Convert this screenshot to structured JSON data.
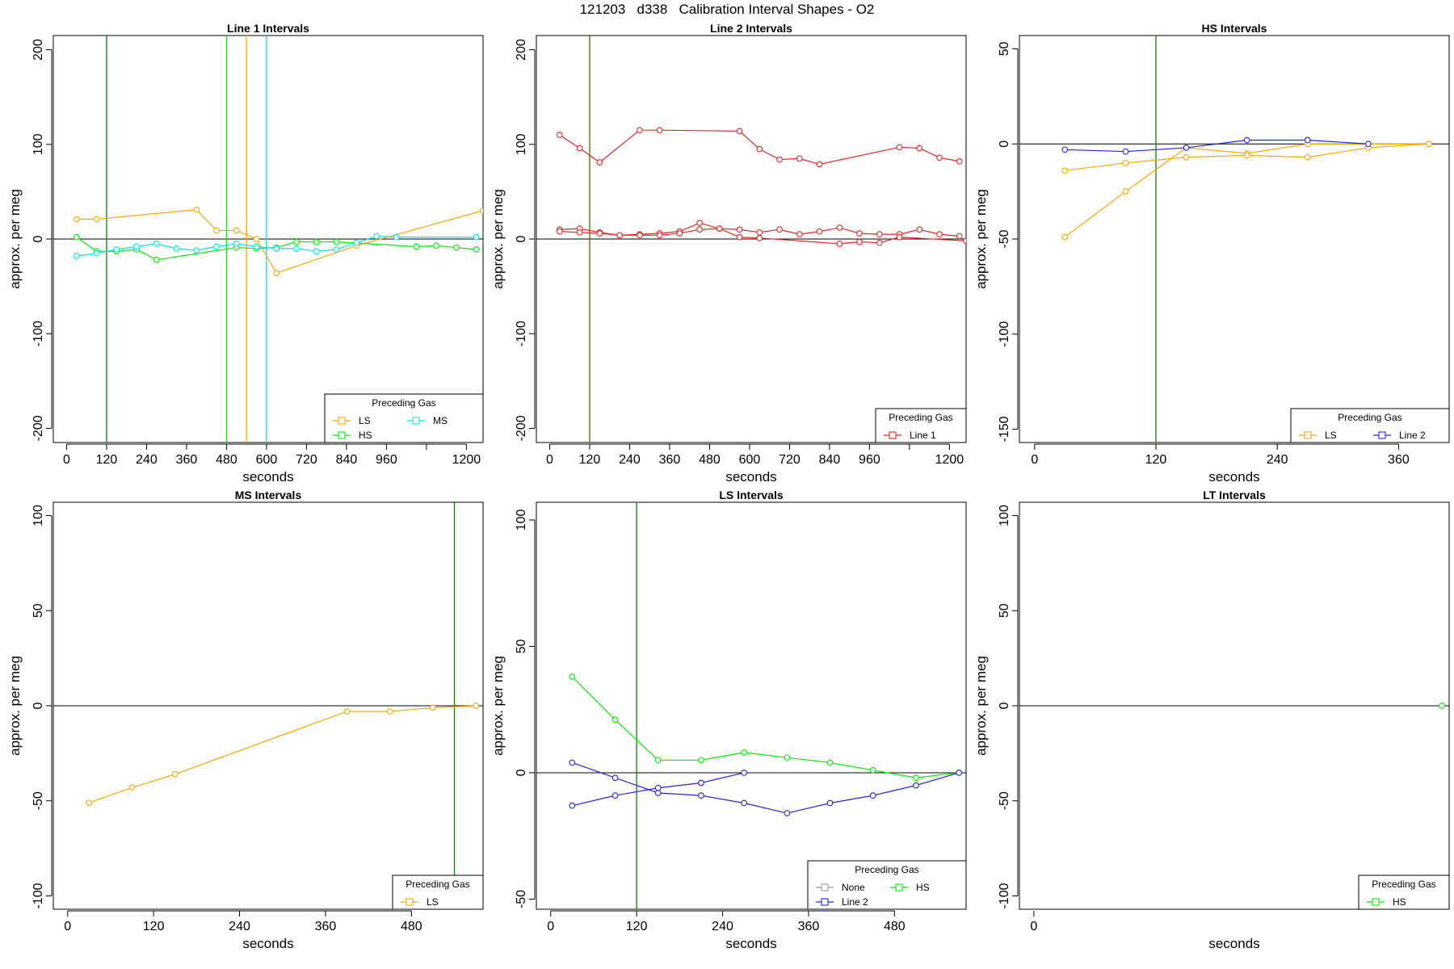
{
  "figure": {
    "title": "121203   d338   Calibration Interval Shapes - O2"
  },
  "colors": {
    "LS": "#ffa500",
    "HS": "#00ee00",
    "MS": "#00e5ee",
    "Line 1": "#ee2222",
    "Line 2": "#2222ee",
    "None": "#999999",
    "zero": "#000000"
  },
  "chart_data": [
    {
      "type": "line",
      "title": "Line 1 Intervals",
      "xlabel": "seconds",
      "ylabel": "approx. per meg",
      "xlim": [
        -40,
        1250
      ],
      "ylim": [
        -215,
        215
      ],
      "xticks": [
        0,
        120,
        240,
        360,
        480,
        600,
        720,
        840,
        960,
        1200
      ],
      "xtick_minor": [
        1080
      ],
      "yticks": [
        -200,
        -100,
        0,
        100,
        200
      ],
      "legend": {
        "title": "Preceding Gas",
        "position": "bottom-right",
        "items": [
          [
            "LS",
            "MS"
          ],
          [
            "HS"
          ]
        ]
      },
      "vlines": [
        {
          "x": 120,
          "color": "#008800"
        },
        {
          "x": 480,
          "color": "#00ee00"
        },
        {
          "x": 540,
          "color": "#ffa500"
        },
        {
          "x": 600,
          "color": "#00e5ee"
        }
      ],
      "series": [
        {
          "name": "LS",
          "color": "#ffa500",
          "points": [
            [
              30,
              21
            ],
            [
              90,
              21
            ],
            [
              390,
              31
            ],
            [
              450,
              9
            ],
            [
              510,
              9
            ],
            [
              570,
              0
            ],
            [
              630,
              -36
            ],
            [
              870,
              -7
            ],
            [
              1250,
              30
            ]
          ]
        },
        {
          "name": "HS",
          "color": "#00ee00",
          "points": [
            [
              30,
              2
            ],
            [
              90,
              -13
            ],
            [
              150,
              -13
            ],
            [
              210,
              -11
            ],
            [
              270,
              -22
            ],
            [
              510,
              -9
            ],
            [
              570,
              -10
            ],
            [
              630,
              -9
            ],
            [
              690,
              -3
            ],
            [
              750,
              -3
            ],
            [
              810,
              -3
            ],
            [
              1050,
              -8
            ],
            [
              1110,
              -7
            ],
            [
              1170,
              -9
            ],
            [
              1230,
              -11
            ]
          ]
        },
        {
          "name": "MS",
          "color": "#00e5ee",
          "points": [
            [
              30,
              -18
            ],
            [
              90,
              -15
            ],
            [
              150,
              -11
            ],
            [
              210,
              -8
            ],
            [
              270,
              -5
            ],
            [
              330,
              -10
            ],
            [
              390,
              -12
            ],
            [
              450,
              -8
            ],
            [
              510,
              -5
            ],
            [
              570,
              -8
            ],
            [
              630,
              -10
            ],
            [
              690,
              -10
            ],
            [
              750,
              -13
            ],
            [
              810,
              -11
            ],
            [
              870,
              -4
            ],
            [
              930,
              3
            ],
            [
              990,
              2
            ],
            [
              1230,
              2
            ]
          ]
        }
      ]
    },
    {
      "type": "line",
      "title": "Line 2 Intervals",
      "xlabel": "seconds",
      "ylabel": "approx. per meg",
      "xlim": [
        -40,
        1250
      ],
      "ylim": [
        -215,
        215
      ],
      "xticks": [
        0,
        120,
        240,
        360,
        480,
        600,
        720,
        840,
        960,
        1200
      ],
      "xtick_minor": [
        1080
      ],
      "yticks": [
        -200,
        -100,
        0,
        100,
        200
      ],
      "legend": {
        "title": "Preceding Gas",
        "position": "bottom-right",
        "items": [
          [
            "Line 1"
          ]
        ]
      },
      "vlines": [
        {
          "x": 120,
          "color": "#556b00"
        }
      ],
      "series": [
        {
          "name": "Line 1",
          "color": "#ee2222",
          "points": [
            [
              30,
              110
            ],
            [
              90,
              96
            ],
            [
              150,
              81
            ],
            [
              270,
              115
            ],
            [
              330,
              115
            ],
            [
              570,
              114
            ],
            [
              630,
              95
            ],
            [
              690,
              84
            ],
            [
              750,
              85
            ],
            [
              810,
              79
            ],
            [
              1050,
              97
            ],
            [
              1110,
              96
            ],
            [
              1170,
              86
            ],
            [
              1230,
              82
            ]
          ]
        },
        {
          "name": "Line 1",
          "color": "#ee2222",
          "points": [
            [
              30,
              10
            ],
            [
              90,
              11
            ],
            [
              150,
              7
            ],
            [
              210,
              4
            ],
            [
              270,
              5
            ],
            [
              330,
              6
            ],
            [
              390,
              8
            ],
            [
              450,
              17
            ],
            [
              510,
              11
            ],
            [
              570,
              10
            ],
            [
              630,
              7
            ],
            [
              690,
              10
            ],
            [
              750,
              5
            ],
            [
              810,
              8
            ],
            [
              870,
              12
            ],
            [
              930,
              6
            ],
            [
              990,
              5
            ],
            [
              1050,
              5
            ],
            [
              1110,
              10
            ],
            [
              1170,
              5
            ],
            [
              1230,
              3
            ]
          ]
        },
        {
          "name": "Line 1",
          "color": "#ee2222",
          "points": [
            [
              30,
              8
            ],
            [
              90,
              7
            ],
            [
              150,
              6
            ],
            [
              210,
              4
            ],
            [
              270,
              4
            ],
            [
              330,
              4
            ],
            [
              390,
              6
            ],
            [
              450,
              10
            ],
            [
              510,
              11
            ],
            [
              570,
              2
            ],
            [
              630,
              1
            ],
            [
              870,
              -5
            ],
            [
              930,
              -3
            ],
            [
              990,
              -4
            ],
            [
              1050,
              2
            ],
            [
              1250,
              -2
            ]
          ]
        }
      ]
    },
    {
      "type": "line",
      "title": "HS Intervals",
      "xlabel": "seconds",
      "ylabel": "approx. per meg",
      "xlim": [
        -15,
        410
      ],
      "ylim": [
        -157,
        57
      ],
      "xticks": [
        0,
        120,
        240,
        360
      ],
      "yticks": [
        -150,
        -100,
        -50,
        0,
        50
      ],
      "legend": {
        "title": "Preceding Gas",
        "position": "bottom-right",
        "items": [
          [
            "LS",
            "Line 2"
          ]
        ]
      },
      "vlines": [
        {
          "x": 120,
          "color": "#008800"
        }
      ],
      "series": [
        {
          "name": "LS",
          "color": "#ffa500",
          "points": [
            [
              30,
              -49
            ],
            [
              90,
              -25
            ],
            [
              150,
              -2
            ],
            [
              210,
              -5
            ],
            [
              270,
              0
            ],
            [
              390,
              0
            ]
          ]
        },
        {
          "name": "LS",
          "color": "#ffa500",
          "points": [
            [
              30,
              -14
            ],
            [
              90,
              -10
            ],
            [
              150,
              -7
            ],
            [
              210,
              -6
            ],
            [
              270,
              -7
            ],
            [
              330,
              -2
            ],
            [
              390,
              0
            ]
          ]
        },
        {
          "name": "Line 2",
          "color": "#2222ee",
          "points": [
            [
              30,
              -3
            ],
            [
              90,
              -4
            ],
            [
              150,
              -2
            ],
            [
              210,
              2
            ],
            [
              270,
              2
            ],
            [
              330,
              0
            ]
          ]
        }
      ]
    },
    {
      "type": "line",
      "title": "MS Intervals",
      "xlabel": "seconds",
      "ylabel": "approx. per meg",
      "xlim": [
        -20,
        580
      ],
      "ylim": [
        -107,
        107
      ],
      "xticks": [
        0,
        120,
        240,
        360,
        480
      ],
      "yticks": [
        -100,
        -50,
        0,
        50,
        100
      ],
      "legend": {
        "title": "Preceding Gas",
        "position": "bottom-right",
        "items": [
          [
            "LS"
          ]
        ]
      },
      "vlines": [
        {
          "x": 540,
          "color": "#008800"
        }
      ],
      "series": [
        {
          "name": "LS",
          "color": "#ffa500",
          "points": [
            [
              30,
              -51
            ],
            [
              90,
              -43
            ],
            [
              150,
              -36
            ],
            [
              390,
              -3
            ],
            [
              450,
              -3
            ],
            [
              510,
              -1
            ],
            [
              570,
              0
            ]
          ]
        }
      ]
    },
    {
      "type": "line",
      "title": "LS Intervals",
      "xlabel": "seconds",
      "ylabel": "approx. per meg",
      "xlim": [
        -20,
        580
      ],
      "ylim": [
        -54,
        107
      ],
      "xticks": [
        0,
        120,
        240,
        360,
        480
      ],
      "yticks": [
        -50,
        0,
        50,
        100
      ],
      "legend": {
        "title": "Preceding Gas",
        "position": "bottom-right",
        "items": [
          [
            "None",
            "HS"
          ],
          [
            "Line 2"
          ]
        ]
      },
      "vlines": [
        {
          "x": 120,
          "color": "#008800"
        }
      ],
      "series": [
        {
          "name": "HS",
          "color": "#00ee00",
          "points": [
            [
              30,
              38
            ],
            [
              90,
              21
            ],
            [
              150,
              5
            ],
            [
              210,
              5
            ],
            [
              270,
              8
            ],
            [
              330,
              6
            ],
            [
              390,
              4
            ],
            [
              450,
              1
            ],
            [
              510,
              -2
            ],
            [
              570,
              0
            ]
          ]
        },
        {
          "name": "Line 2",
          "color": "#2222ee",
          "points": [
            [
              30,
              4
            ],
            [
              90,
              -2
            ],
            [
              150,
              -8
            ],
            [
              210,
              -9
            ],
            [
              270,
              -12
            ],
            [
              330,
              -16
            ],
            [
              390,
              -12
            ],
            [
              450,
              -9
            ],
            [
              510,
              -5
            ],
            [
              570,
              0
            ]
          ]
        },
        {
          "name": "Line 2",
          "color": "#2222ee",
          "points": [
            [
              30,
              -13
            ],
            [
              90,
              -9
            ],
            [
              150,
              -6
            ],
            [
              210,
              -4
            ],
            [
              270,
              0
            ]
          ]
        }
      ]
    },
    {
      "type": "line",
      "title": "LT Intervals",
      "xlabel": "seconds",
      "ylabel": "approx. per meg",
      "xlim": [
        -4,
        115
      ],
      "ylim": [
        -107,
        107
      ],
      "xticks": [
        0
      ],
      "yticks": [
        -100,
        -50,
        0,
        50,
        100
      ],
      "legend": {
        "title": "Preceding Gas",
        "position": "bottom-right",
        "items": [
          [
            "HS"
          ]
        ]
      },
      "vlines": [],
      "series": [
        {
          "name": "HS",
          "color": "#00ee00",
          "points": [
            [
              113,
              0
            ]
          ]
        }
      ]
    }
  ]
}
